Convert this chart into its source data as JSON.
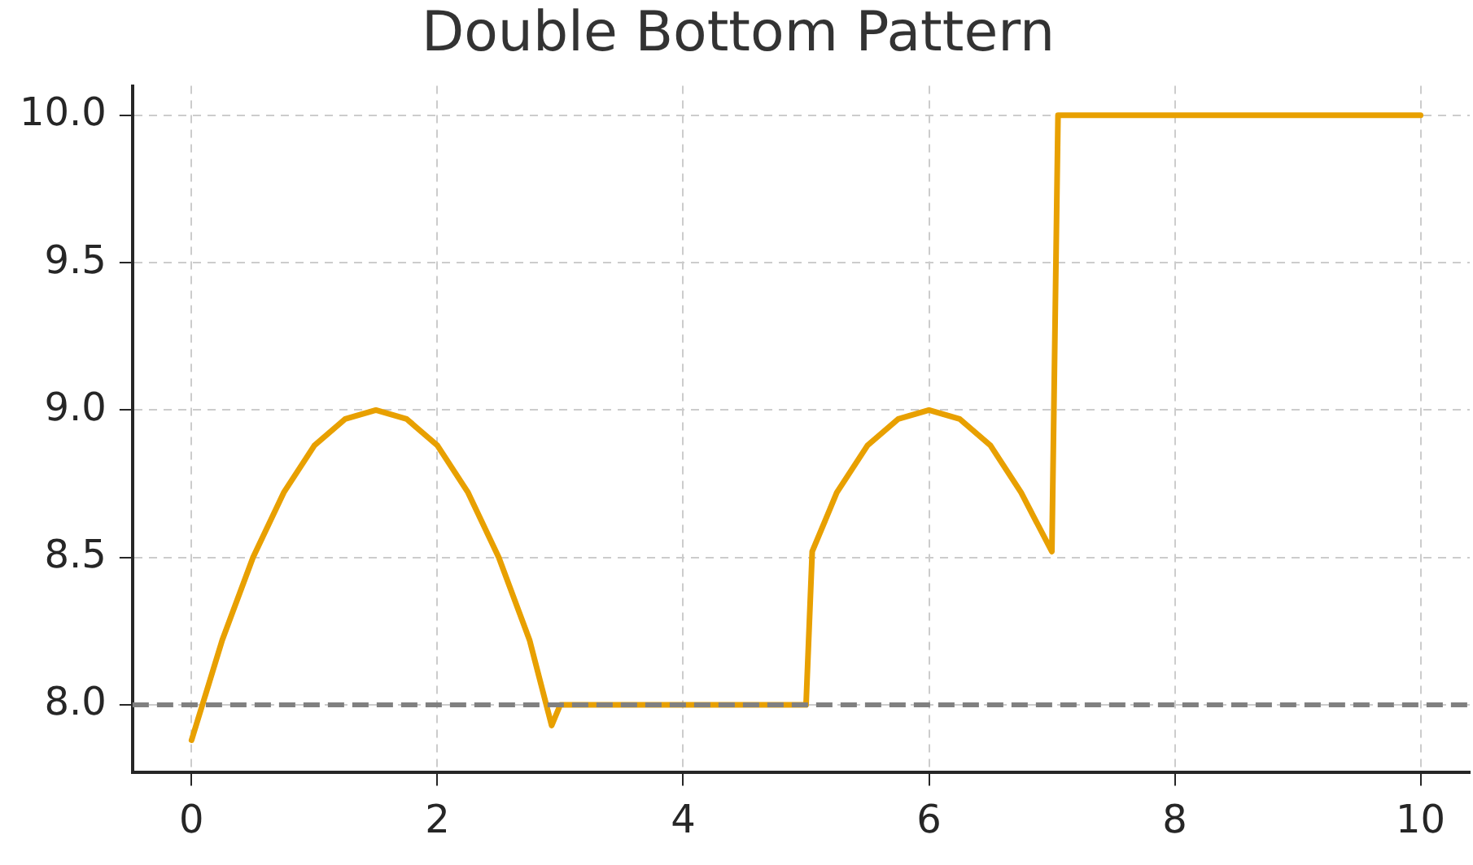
{
  "chart_data": {
    "type": "line",
    "title": "Double Bottom Pattern",
    "series": [
      {
        "color": "#e8a000",
        "x": [
          0,
          0.25,
          0.5,
          0.75,
          1,
          1.25,
          1.5,
          1.75,
          2,
          2.25,
          2.5,
          2.75,
          2.93,
          3,
          5,
          5.05,
          5.25,
          5.5,
          5.75,
          6,
          6.25,
          6.5,
          6.75,
          7,
          7.05,
          10
        ],
        "values": [
          7.88,
          8.22,
          8.5,
          8.72,
          8.88,
          8.97,
          9,
          8.97,
          8.88,
          8.72,
          8.5,
          8.22,
          7.93,
          8,
          8,
          8.52,
          8.72,
          8.88,
          8.97,
          9,
          8.97,
          8.88,
          8.72,
          8.52,
          10,
          10
        ]
      }
    ],
    "xlim": [
      -0.48,
      10.4
    ],
    "ylim": [
      7.77,
      10.1
    ],
    "xticks": [
      0,
      2,
      4,
      6,
      8,
      10
    ],
    "yticks": [
      {
        "value": 8,
        "label": "8.0"
      },
      {
        "value": 8.5,
        "label": "8.5"
      },
      {
        "value": 9,
        "label": "9.0"
      },
      {
        "value": 9.5,
        "label": "9.5"
      },
      {
        "value": 10,
        "label": "10.0"
      }
    ],
    "ref_lines": [
      {
        "axis": "y",
        "value": 8,
        "color": "#808080",
        "line_style": "dashed"
      }
    ],
    "grid": true,
    "legend": false,
    "marker": "none",
    "line_style": "solid"
  }
}
